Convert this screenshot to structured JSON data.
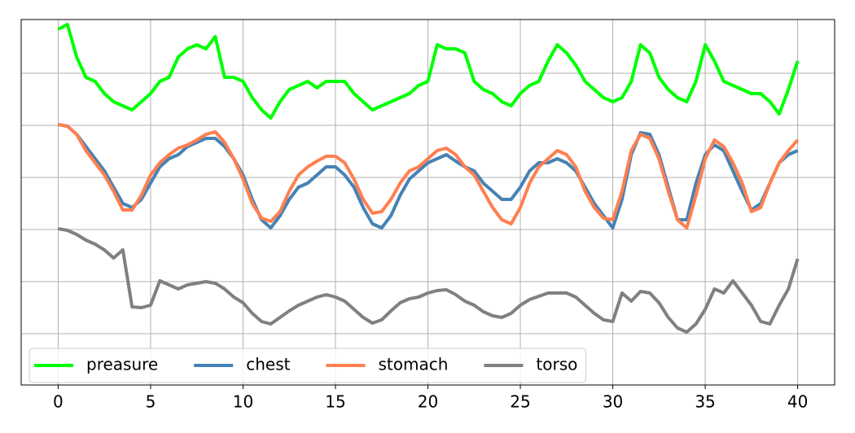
{
  "chart_data": {
    "type": "line",
    "x": [
      0,
      0.5,
      1,
      1.5,
      2,
      2.5,
      3,
      3.5,
      4,
      4.5,
      5,
      5.5,
      6,
      6.5,
      7,
      7.5,
      8,
      8.5,
      9,
      9.5,
      10,
      10.5,
      11,
      11.5,
      12,
      12.5,
      13,
      13.5,
      14,
      14.5,
      15,
      15.5,
      16,
      16.5,
      17,
      17.5,
      18,
      18.5,
      19,
      19.5,
      20,
      20.5,
      21,
      21.5,
      22,
      22.5,
      23,
      23.5,
      24,
      24.5,
      25,
      25.5,
      26,
      26.5,
      27,
      27.5,
      28,
      28.5,
      29,
      29.5,
      30,
      30.5,
      31,
      31.5,
      32,
      32.5,
      33,
      33.5,
      34,
      34.5,
      35,
      35.5,
      36,
      36.5,
      37,
      37.5,
      38,
      38.5,
      39,
      39.5,
      40
    ],
    "series": [
      {
        "name": "preasure",
        "color": "#00ff00",
        "values": [
          374,
          380,
          340,
          315,
          310,
          295,
          285,
          280,
          275,
          285,
          295,
          310,
          315,
          340,
          350,
          355,
          350,
          365,
          315,
          315,
          310,
          290,
          275,
          265,
          285,
          300,
          305,
          310,
          302,
          310,
          310,
          310,
          295,
          285,
          275,
          280,
          285,
          290,
          295,
          305,
          310,
          355,
          350,
          350,
          345,
          310,
          300,
          295,
          285,
          280,
          295,
          305,
          310,
          335,
          355,
          345,
          330,
          310,
          300,
          290,
          285,
          290,
          310,
          355,
          345,
          315,
          300,
          290,
          285,
          310,
          355,
          335,
          310,
          305,
          300,
          295,
          295,
          285,
          270,
          300,
          335
        ]
      },
      {
        "name": "chest",
        "color": "#4682b4",
        "values": [
          257,
          255,
          245,
          230,
          215,
          200,
          180,
          160,
          155,
          165,
          185,
          205,
          215,
          220,
          230,
          235,
          240,
          240,
          230,
          215,
          195,
          165,
          140,
          130,
          145,
          165,
          180,
          185,
          195,
          205,
          205,
          195,
          180,
          155,
          135,
          130,
          145,
          170,
          190,
          200,
          210,
          215,
          220,
          212,
          205,
          200,
          185,
          175,
          165,
          165,
          180,
          200,
          210,
          210,
          215,
          210,
          200,
          180,
          160,
          145,
          130,
          165,
          220,
          247,
          245,
          220,
          180,
          140,
          140,
          185,
          220,
          232,
          225,
          200,
          175,
          152,
          160,
          185,
          210,
          220,
          225
        ]
      },
      {
        "name": "stomach",
        "color": "#ff7f50",
        "values": [
          257,
          255,
          245,
          225,
          210,
          195,
          175,
          152,
          152,
          170,
          195,
          210,
          220,
          228,
          232,
          238,
          245,
          248,
          235,
          215,
          190,
          160,
          142,
          138,
          150,
          175,
          195,
          205,
          212,
          218,
          218,
          210,
          190,
          165,
          148,
          150,
          165,
          185,
          200,
          205,
          215,
          225,
          228,
          220,
          205,
          195,
          175,
          155,
          140,
          135,
          155,
          185,
          205,
          215,
          225,
          220,
          205,
          175,
          155,
          142,
          140,
          175,
          225,
          245,
          240,
          215,
          175,
          140,
          130,
          170,
          215,
          238,
          230,
          210,
          185,
          150,
          155,
          185,
          210,
          225,
          238
        ]
      },
      {
        "name": "torso",
        "color": "#808080",
        "values": [
          129,
          127,
          122,
          115,
          110,
          103,
          93,
          103,
          33,
          32,
          35,
          65,
          60,
          55,
          60,
          62,
          64,
          62,
          55,
          45,
          38,
          25,
          15,
          12,
          20,
          28,
          35,
          40,
          45,
          48,
          45,
          40,
          30,
          20,
          13,
          17,
          28,
          38,
          43,
          45,
          50,
          53,
          54,
          48,
          40,
          35,
          27,
          22,
          20,
          25,
          35,
          42,
          46,
          50,
          50,
          50,
          45,
          35,
          25,
          17,
          15,
          50,
          40,
          52,
          50,
          38,
          20,
          7,
          2,
          12,
          30,
          55,
          50,
          65,
          50,
          35,
          15,
          12,
          35,
          55,
          92
        ]
      }
    ],
    "xlim": [
      -2,
      42
    ],
    "xticks": [
      0,
      5,
      10,
      15,
      20,
      25,
      30,
      35,
      40
    ],
    "ylim": [
      -63,
      386
    ],
    "yticks": [
      0,
      64,
      128,
      192,
      256,
      320
    ],
    "grid": true,
    "legend": "lower left"
  }
}
